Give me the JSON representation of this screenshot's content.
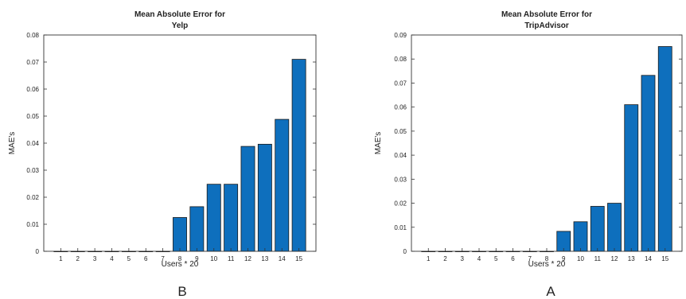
{
  "chart_data": [
    {
      "type": "bar",
      "title": [
        "Mean Absolute Error for",
        "Yelp"
      ],
      "xlabel": "Users * 20",
      "ylabel": "MAE's",
      "panel_label": "B",
      "categories": [
        "1",
        "2",
        "3",
        "4",
        "5",
        "6",
        "7",
        "8",
        "9",
        "10",
        "11",
        "12",
        "13",
        "14",
        "15"
      ],
      "values": [
        0,
        0,
        0,
        0,
        0,
        0,
        0,
        0.0125,
        0.0165,
        0.0248,
        0.0248,
        0.0388,
        0.0396,
        0.0488,
        0.071
      ],
      "ylim": [
        0,
        0.08
      ],
      "yticks": [
        "0",
        "0.01",
        "0.02",
        "0.03",
        "0.04",
        "0.05",
        "0.06",
        "0.07",
        "0.08"
      ],
      "bar_color": "#0e6fbd",
      "grid": false
    },
    {
      "type": "bar",
      "title": [
        "Mean Absolute Error for",
        "TripAdvisor"
      ],
      "xlabel": "Users * 20",
      "ylabel": "MAE's",
      "panel_label": "A",
      "categories": [
        "1",
        "2",
        "3",
        "4",
        "5",
        "6",
        "7",
        "8",
        "9",
        "10",
        "11",
        "12",
        "13",
        "14",
        "15"
      ],
      "values": [
        0,
        0,
        0,
        0,
        0,
        0,
        0,
        0,
        0.0083,
        0.0123,
        0.0187,
        0.02,
        0.061,
        0.0732,
        0.0852
      ],
      "ylim": [
        0,
        0.09
      ],
      "yticks": [
        "0",
        "0.01",
        "0.02",
        "0.03",
        "0.04",
        "0.05",
        "0.06",
        "0.07",
        "0.08",
        "0.09"
      ],
      "bar_color": "#0e6fbd",
      "grid": false
    }
  ]
}
